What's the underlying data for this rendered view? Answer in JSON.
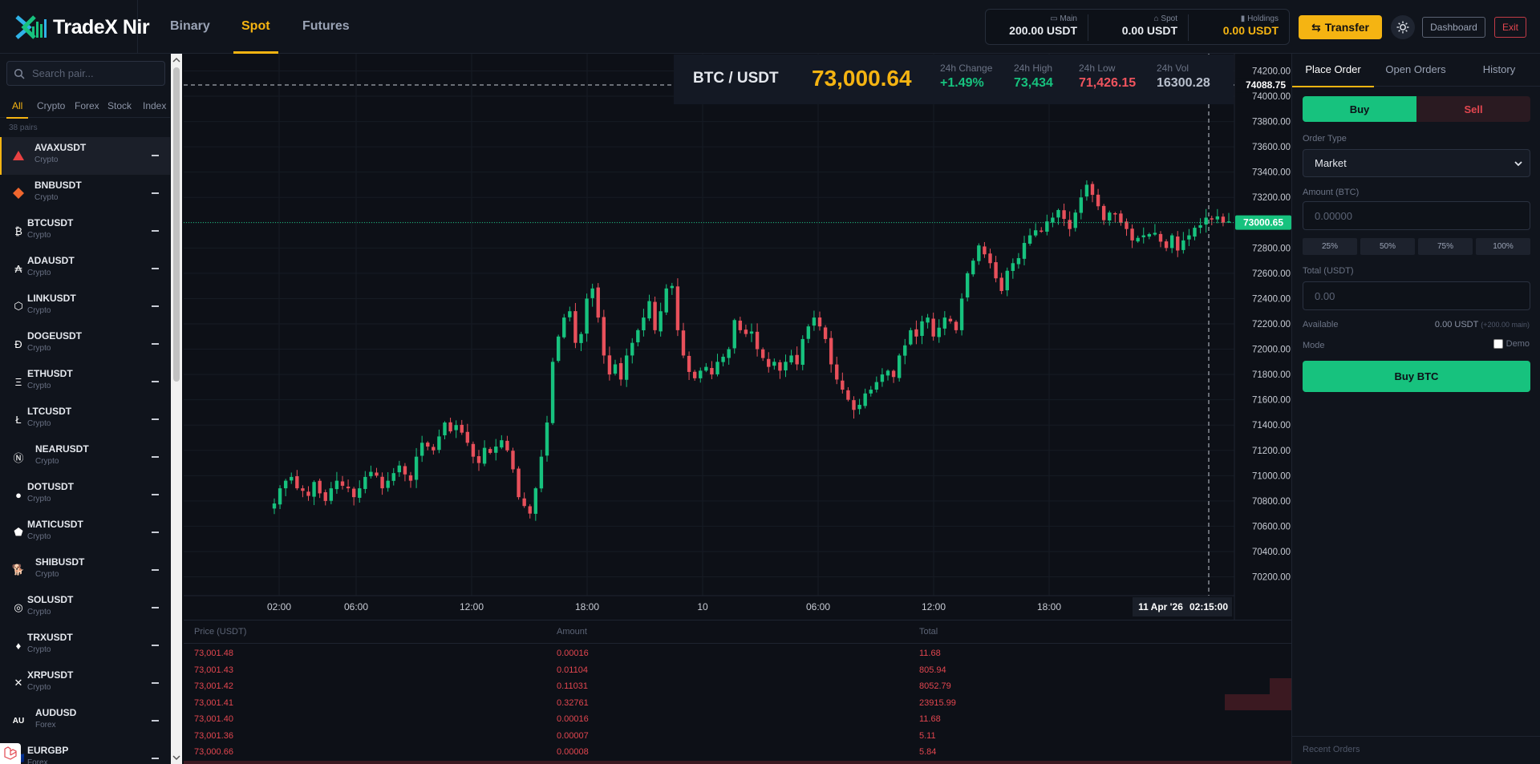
{
  "brand": {
    "name": "TradeX Nir"
  },
  "nav": {
    "tabs": [
      {
        "label": "Binary"
      },
      {
        "label": "Spot"
      },
      {
        "label": "Futures"
      }
    ],
    "active": "Spot"
  },
  "wallet": {
    "main": {
      "label": "Main",
      "value": "200.00 USDT"
    },
    "spot": {
      "label": "Spot",
      "value": "0.00 USDT"
    },
    "holdings": {
      "label": "Holdings",
      "value": "0.00 USDT"
    }
  },
  "header_actions": {
    "transfer": "Transfer",
    "dashboard": "Dashboard",
    "exit": "Exit"
  },
  "sidebar": {
    "search_placeholder": "Search pair...",
    "filters": [
      "All",
      "Crypto",
      "Forex",
      "Stock",
      "Index"
    ],
    "count": "38 pairs",
    "pairs": [
      {
        "symbol": "AVAXUSDT",
        "category": "Crypto",
        "icon": "avax-icon",
        "color": "#e84142"
      },
      {
        "symbol": "BNBUSDT",
        "category": "Crypto",
        "icon": "bnb-icon",
        "color": "#f3ba2f"
      },
      {
        "symbol": "BTCUSDT",
        "category": "Crypto",
        "icon": "btc-icon",
        "color": "#ffffff"
      },
      {
        "symbol": "ADAUSDT",
        "category": "Crypto",
        "icon": "ada-icon",
        "color": "#ffffff"
      },
      {
        "symbol": "LINKUSDT",
        "category": "Crypto",
        "icon": "link-icon",
        "color": "#ffffff"
      },
      {
        "symbol": "DOGEUSDT",
        "category": "Crypto",
        "icon": "doge-icon",
        "color": "#ffffff"
      },
      {
        "symbol": "ETHUSDT",
        "category": "Crypto",
        "icon": "eth-icon",
        "color": "#ffffff"
      },
      {
        "symbol": "LTCUSDT",
        "category": "Crypto",
        "icon": "ltc-icon",
        "color": "#ffffff"
      },
      {
        "symbol": "NEARUSDT",
        "category": "Crypto",
        "icon": "near-icon",
        "color": "#ffffff"
      },
      {
        "symbol": "DOTUSDT",
        "category": "Crypto",
        "icon": "dot-icon",
        "color": "#ffffff"
      },
      {
        "symbol": "MATICUSDT",
        "category": "Crypto",
        "icon": "matic-icon",
        "color": "#ffffff"
      },
      {
        "symbol": "SHIBUSDT",
        "category": "Crypto",
        "icon": "shib-icon",
        "color": "#f5a623"
      },
      {
        "symbol": "SOLUSDT",
        "category": "Crypto",
        "icon": "sol-icon",
        "color": "#ffffff"
      },
      {
        "symbol": "TRXUSDT",
        "category": "Crypto",
        "icon": "trx-icon",
        "color": "#ffffff"
      },
      {
        "symbol": "XRPUSDT",
        "category": "Crypto",
        "icon": "xrp-icon",
        "color": "#ffffff"
      },
      {
        "symbol": "AUDUSD",
        "category": "Forex",
        "icon": "au-flag-icon",
        "color": "#ffffff"
      },
      {
        "symbol": "EURGBP",
        "category": "Forex",
        "icon": "eu-flag-icon",
        "color": "#ffffff"
      }
    ]
  },
  "ticker": {
    "pair": "BTC / USDT",
    "price": "73,000.64",
    "stats": [
      {
        "label": "24h Change",
        "value": "+1.49%",
        "color": "#17c27e"
      },
      {
        "label": "24h High",
        "value": "73,434",
        "color": "#17c27e"
      },
      {
        "label": "24h Low",
        "value": "71,426.15",
        "color": "#f0545e"
      },
      {
        "label": "24h Vol",
        "value": "16300.28",
        "color": "#b8bfcc"
      }
    ]
  },
  "chart_data": {
    "type": "candlestick",
    "y_ticks": [
      "74200.00",
      "74000.00",
      "73800.00",
      "73600.00",
      "73400.00",
      "73200.00",
      "73000.00",
      "72800.00",
      "72600.00",
      "72400.00",
      "72200.00",
      "72000.00",
      "71800.00",
      "71600.00",
      "71400.00",
      "71200.00",
      "71000.00",
      "70800.00",
      "70600.00",
      "70400.00",
      "70200.00"
    ],
    "ylim": [
      70140,
      74260
    ],
    "x_ticks": [
      "02:00",
      "06:00",
      "12:00",
      "18:00",
      "10",
      "06:00",
      "12:00",
      "18:00"
    ],
    "crosshair": {
      "price": "74088.75",
      "time": "02:15:00",
      "date": "11 Apr '26"
    },
    "last_price_label": "73000.65",
    "colors": {
      "up": "#17c27e",
      "down": "#e8505b"
    },
    "closes": [
      70780,
      70900,
      70960,
      70990,
      70900,
      70880,
      70840,
      70950,
      70860,
      70800,
      70900,
      70960,
      70920,
      70900,
      70830,
      70900,
      70990,
      71030,
      71000,
      70900,
      70960,
      71020,
      71080,
      71010,
      70960,
      71150,
      71260,
      71230,
      71200,
      71310,
      71420,
      71350,
      71400,
      71340,
      71260,
      71150,
      71100,
      71220,
      71180,
      71230,
      71280,
      71200,
      71050,
      70830,
      70760,
      70700,
      70900,
      71150,
      71420,
      71900,
      72100,
      72250,
      72300,
      72050,
      72120,
      72400,
      72480,
      72250,
      71950,
      71800,
      71880,
      71760,
      71950,
      72050,
      72150,
      72250,
      72380,
      72150,
      72300,
      72480,
      72500,
      72150,
      71950,
      71820,
      71770,
      71830,
      71860,
      71800,
      71900,
      71940,
      72000,
      72230,
      72150,
      72120,
      72140,
      72000,
      71930,
      71860,
      71900,
      71830,
      71900,
      71950,
      71880,
      72080,
      72180,
      72250,
      72180,
      72080,
      71880,
      71760,
      71680,
      71600,
      71520,
      71560,
      71650,
      71680,
      71740,
      71800,
      71830,
      71780,
      71950,
      72030,
      72150,
      72100,
      72220,
      72250,
      72100,
      72170,
      72250,
      72220,
      72150,
      72400,
      72600,
      72700,
      72820,
      72750,
      72680,
      72560,
      72460,
      72620,
      72680,
      72720,
      72840,
      72900,
      72940,
      72930,
      73010,
      73040,
      73100,
      73030,
      72950,
      73080,
      73200,
      73300,
      73220,
      73130,
      73020,
      73080,
      73070,
      73000,
      72950,
      72860,
      72880,
      72900,
      72910,
      72920,
      72850,
      72800,
      72900,
      72780,
      72860,
      72900,
      72960,
      72980,
      73040,
      73030,
      73050,
      73000,
      73010
    ]
  },
  "orderbook": {
    "headers": [
      "Price (USDT)",
      "Amount",
      "Total"
    ],
    "rows": [
      {
        "price": "73,001.48",
        "amount": "0.00016",
        "total": "11.68"
      },
      {
        "price": "73,001.43",
        "amount": "0.01104",
        "total": "805.94"
      },
      {
        "price": "73,001.42",
        "amount": "0.11031",
        "total": "8052.79"
      },
      {
        "price": "73,001.41",
        "amount": "0.32761",
        "total": "23915.99"
      },
      {
        "price": "73,001.40",
        "amount": "0.00016",
        "total": "11.68"
      },
      {
        "price": "73,001.36",
        "amount": "0.00007",
        "total": "5.11"
      },
      {
        "price": "73,000.66",
        "amount": "0.00008",
        "total": "5.84"
      }
    ]
  },
  "order_panel": {
    "tabs": [
      "Place Order",
      "Open Orders",
      "History"
    ],
    "buy_label": "Buy",
    "sell_label": "Sell",
    "order_type_label": "Order Type",
    "order_type_value": "Market",
    "amount_label": "Amount (BTC)",
    "amount_placeholder": "0.00000",
    "percent_buttons": [
      "25%",
      "50%",
      "75%",
      "100%"
    ],
    "total_label": "Total (USDT)",
    "total_placeholder": "0.00",
    "available_label": "Available",
    "available_value": "0.00 USDT",
    "available_sub": "(+200.00 main)",
    "mode_label": "Mode",
    "demo_label": "Demo",
    "submit_label": "Buy BTC",
    "recent_label": "Recent Orders"
  }
}
